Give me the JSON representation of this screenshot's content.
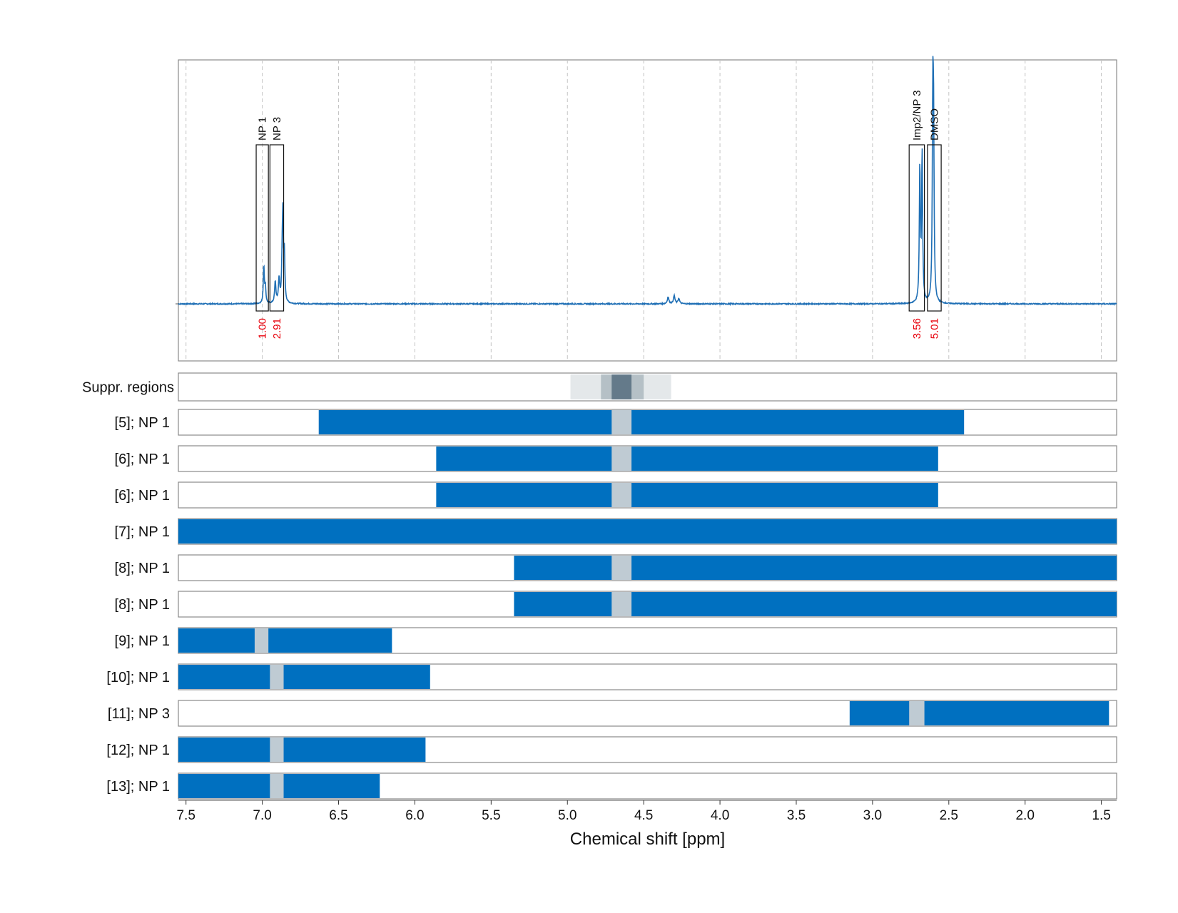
{
  "chart_data": {
    "type": "line",
    "xlabel": "Chemical shift [ppm]",
    "xlim": [
      7.55,
      1.4
    ],
    "x_reversed": true,
    "x_ticks": [
      "7.5",
      "7.0",
      "6.5",
      "6.0",
      "5.5",
      "5.0",
      "4.5",
      "4.0",
      "3.5",
      "3.0",
      "2.5",
      "2.0",
      "1.5"
    ],
    "grid": "vertical dashed",
    "colors": {
      "spectrum": "#1f6fb5",
      "bar": "#0070c0",
      "gap": "#bfcbd3",
      "integral_label": "#e8000b"
    },
    "spectrum_peaks": [
      {
        "ppm": 6.99,
        "height": 0.14,
        "width": 0.004
      },
      {
        "ppm": 6.98,
        "height": 0.06,
        "width": 0.004
      },
      {
        "ppm": 6.915,
        "height": 0.08,
        "width": 0.005
      },
      {
        "ppm": 6.89,
        "height": 0.09,
        "width": 0.005
      },
      {
        "ppm": 6.87,
        "height": 0.12,
        "width": 0.004
      },
      {
        "ppm": 6.865,
        "height": 0.3,
        "width": 0.004
      },
      {
        "ppm": 6.855,
        "height": 0.17,
        "width": 0.004
      },
      {
        "ppm": 4.34,
        "height": 0.025,
        "width": 0.006
      },
      {
        "ppm": 4.3,
        "height": 0.03,
        "width": 0.006
      },
      {
        "ppm": 4.27,
        "height": 0.02,
        "width": 0.006
      },
      {
        "ppm": 2.69,
        "height": 0.5,
        "width": 0.004
      },
      {
        "ppm": 2.675,
        "height": 0.55,
        "width": 0.004
      },
      {
        "ppm": 2.605,
        "height": 0.66,
        "width": 0.004
      },
      {
        "ppm": 2.6,
        "height": 0.58,
        "width": 0.004
      }
    ],
    "integral_regions": [
      {
        "label": "NP 1",
        "from": 7.04,
        "to": 6.96,
        "integral": "1.00"
      },
      {
        "label": "NP 3",
        "from": 6.95,
        "to": 6.86,
        "integral": "2.91"
      },
      {
        "label": "Imp2/NP 3",
        "from": 2.76,
        "to": 2.66,
        "integral": "3.56"
      },
      {
        "label": "DMSO",
        "from": 2.64,
        "to": 2.55,
        "integral": "5.01"
      }
    ],
    "suppression_row": {
      "label": "Suppr. regions",
      "bands": [
        {
          "from": 4.98,
          "to": 4.32,
          "level": 0.15
        },
        {
          "from": 4.78,
          "to": 4.5,
          "level": 0.3
        },
        {
          "from": 4.71,
          "to": 4.58,
          "level": 0.75
        }
      ]
    },
    "rows": [
      {
        "label": "[5]; NP 1",
        "from": 6.63,
        "to": 2.4,
        "gap": [
          4.71,
          4.58
        ]
      },
      {
        "label": "[6]; NP 1",
        "from": 5.86,
        "to": 2.57,
        "gap": [
          4.71,
          4.58
        ]
      },
      {
        "label": "[6]; NP 1",
        "from": 5.86,
        "to": 2.57,
        "gap": [
          4.71,
          4.58
        ]
      },
      {
        "label": "[7]; NP 1",
        "from": 7.55,
        "to": 1.4,
        "gap": null
      },
      {
        "label": "[8]; NP 1",
        "from": 5.35,
        "to": 1.4,
        "gap": [
          4.71,
          4.58
        ]
      },
      {
        "label": "[8]; NP 1",
        "from": 5.35,
        "to": 1.4,
        "gap": [
          4.71,
          4.58
        ]
      },
      {
        "label": "[9]; NP 1",
        "from": 7.55,
        "to": 6.15,
        "gap": [
          7.05,
          6.96
        ]
      },
      {
        "label": "[10]; NP 1",
        "from": 7.55,
        "to": 5.9,
        "gap": [
          6.95,
          6.86
        ]
      },
      {
        "label": "[11]; NP 3",
        "from": 3.15,
        "to": 1.45,
        "gap": [
          2.76,
          2.66
        ]
      },
      {
        "label": "[12]; NP 1",
        "from": 7.55,
        "to": 5.93,
        "gap": [
          6.95,
          6.86
        ]
      },
      {
        "label": "[13]; NP 1",
        "from": 7.55,
        "to": 6.23,
        "gap": [
          6.95,
          6.86
        ]
      }
    ]
  }
}
